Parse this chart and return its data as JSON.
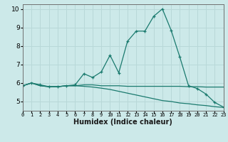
{
  "xlabel": "Humidex (Indice chaleur)",
  "bg_color": "#cce9e9",
  "grid_color": "#b8d8d8",
  "line_color": "#1a7a6e",
  "hours": [
    0,
    1,
    2,
    3,
    4,
    5,
    6,
    7,
    8,
    9,
    10,
    11,
    12,
    13,
    14,
    15,
    16,
    17,
    18,
    19,
    20,
    21,
    22,
    23
  ],
  "line1": [
    5.85,
    6.0,
    5.9,
    5.8,
    5.8,
    5.85,
    5.9,
    6.5,
    6.3,
    6.6,
    7.5,
    6.55,
    8.25,
    8.8,
    8.8,
    9.6,
    10.0,
    8.85,
    7.4,
    5.85,
    5.7,
    5.4,
    4.95,
    4.7
  ],
  "line2": [
    5.85,
    6.0,
    5.85,
    5.8,
    5.8,
    5.85,
    5.85,
    5.9,
    5.9,
    5.85,
    5.85,
    5.85,
    5.82,
    5.82,
    5.82,
    5.82,
    5.82,
    5.82,
    5.82,
    5.8,
    5.8,
    5.78,
    5.78,
    5.78
  ],
  "line3": [
    5.85,
    6.0,
    5.85,
    5.8,
    5.8,
    5.85,
    5.85,
    5.82,
    5.78,
    5.72,
    5.65,
    5.55,
    5.45,
    5.35,
    5.25,
    5.15,
    5.05,
    5.0,
    4.92,
    4.88,
    4.82,
    4.78,
    4.72,
    4.68
  ],
  "ylim": [
    4.5,
    10.25
  ],
  "yticks": [
    5,
    6,
    7,
    8,
    9,
    10
  ],
  "xlim": [
    0,
    23
  ]
}
